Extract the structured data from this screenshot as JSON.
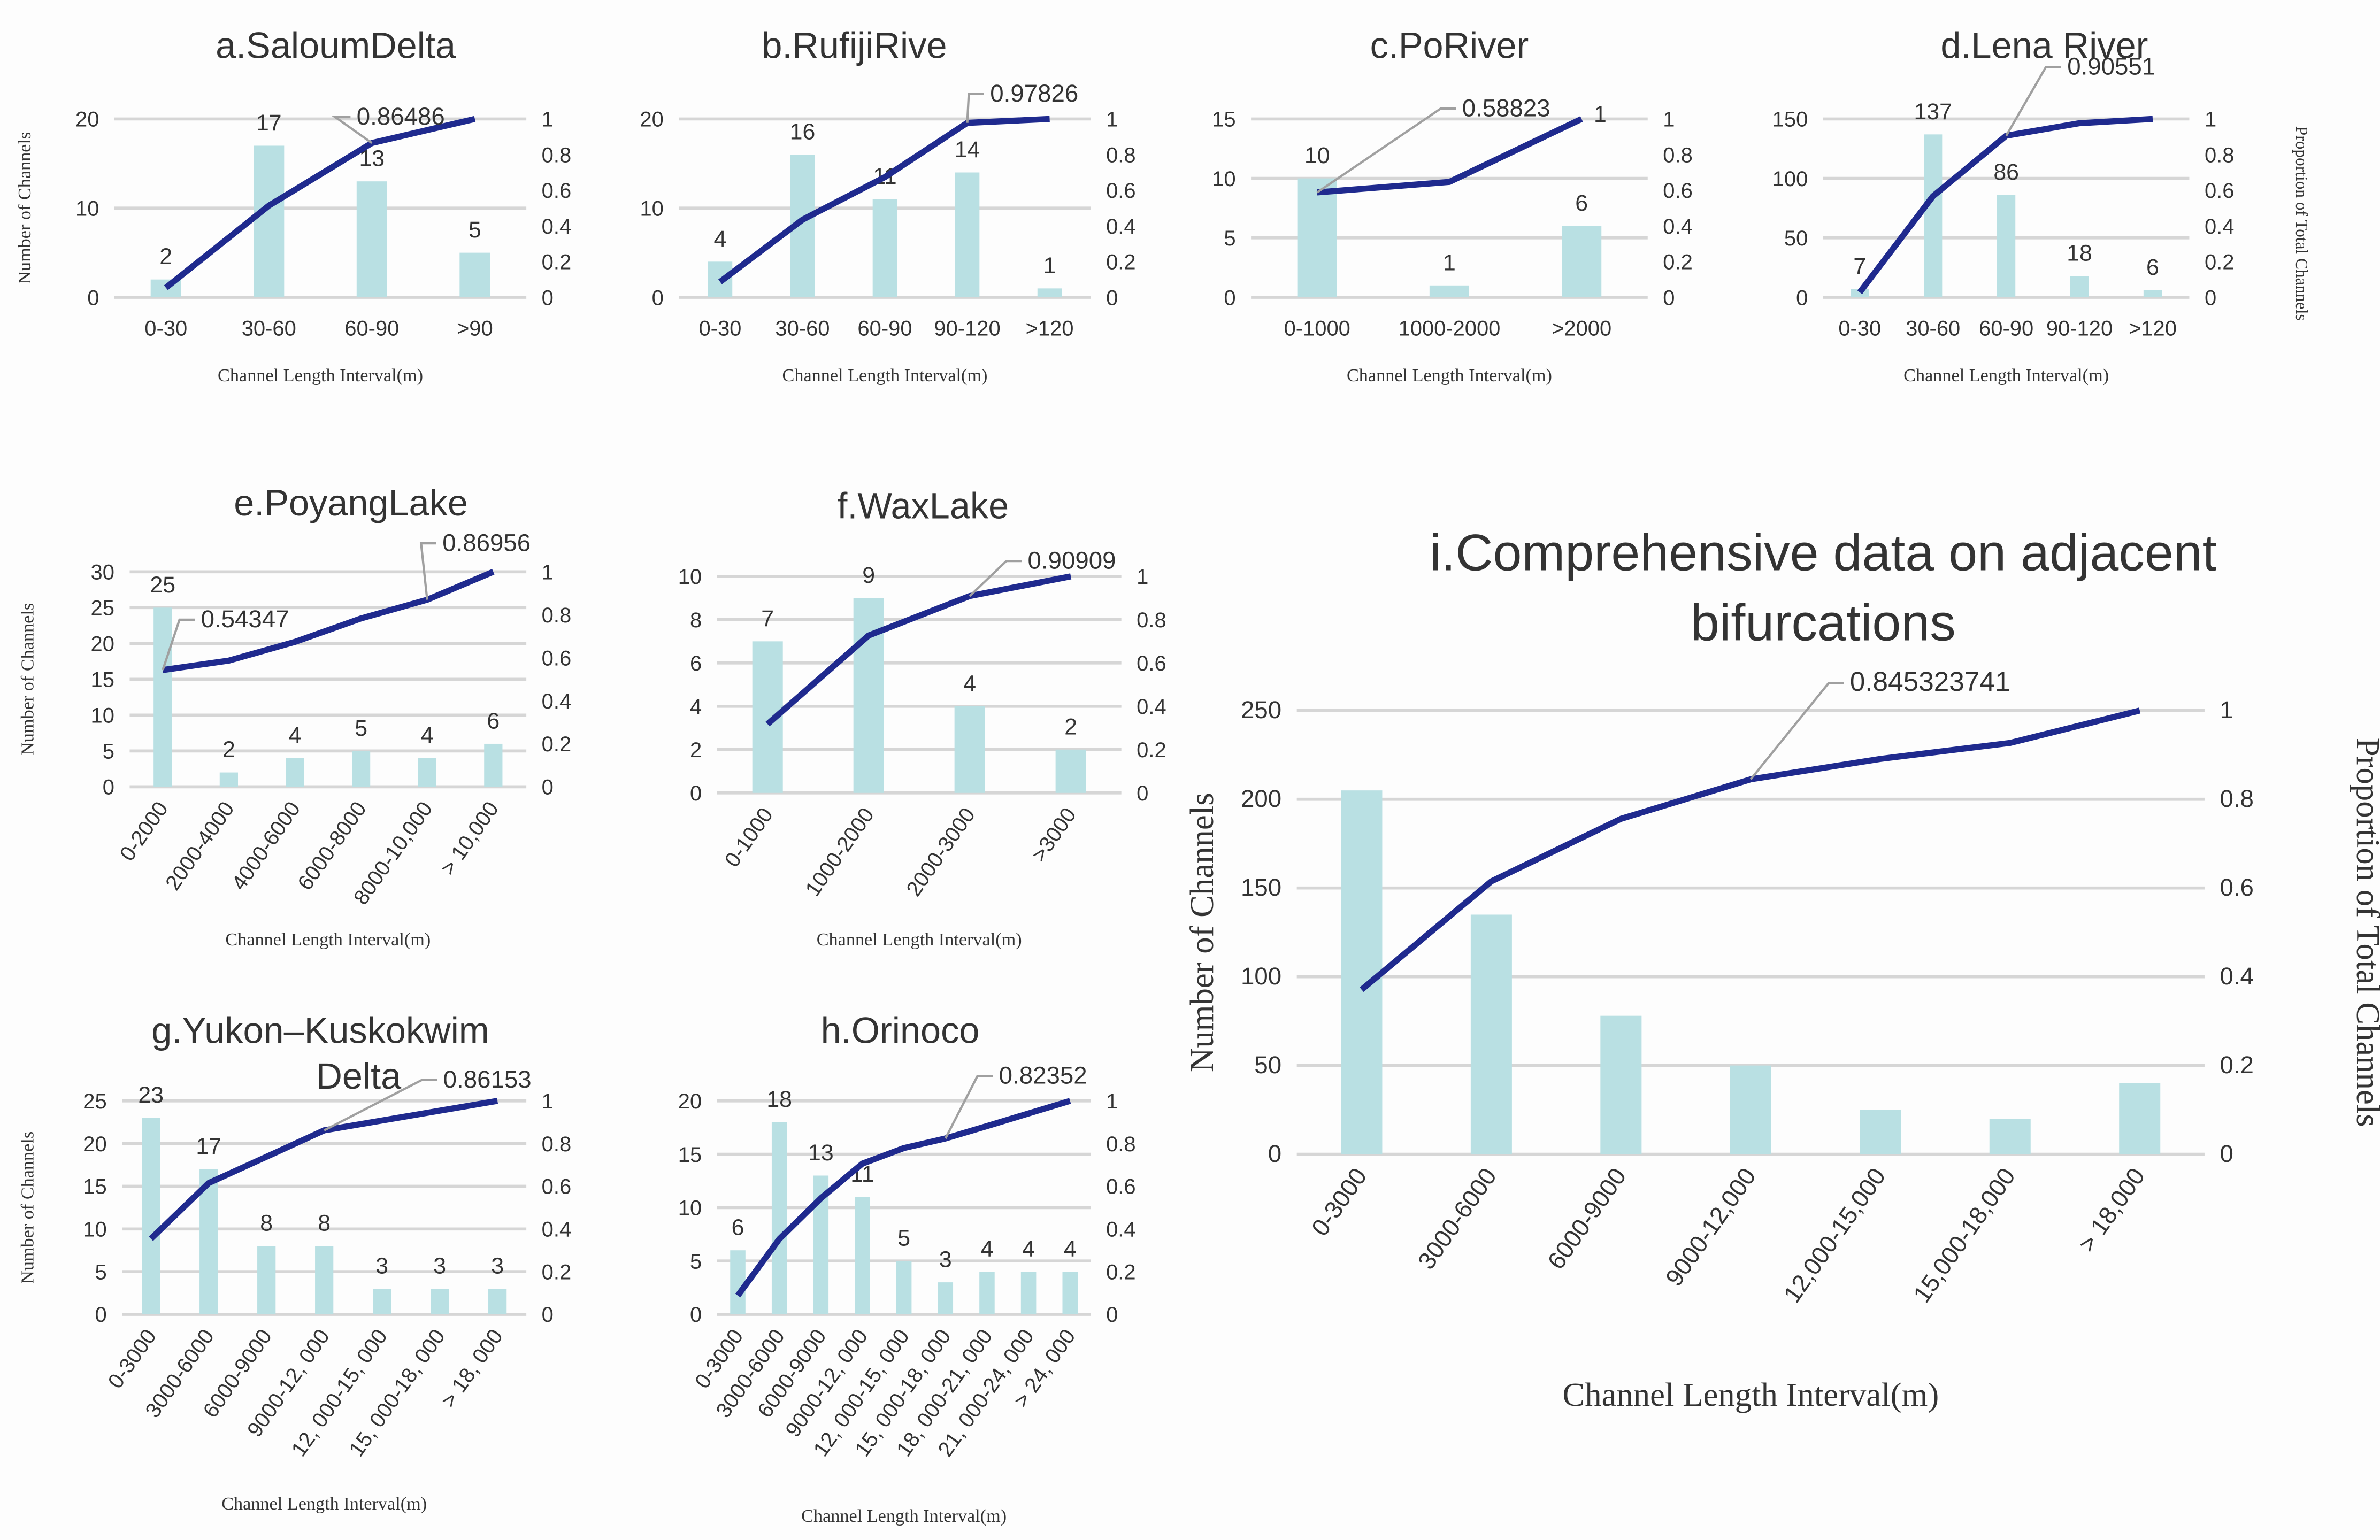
{
  "colors": {
    "bar": "#b9e0e3",
    "line": "#1f2a8e",
    "grid": "#d6d6d6",
    "leader": "#a0a0a0",
    "text": "#333333"
  },
  "chart_data": [
    {
      "id": "a",
      "type": "bar+line",
      "title": "a.SaloumDelta",
      "xlabel": "Channel Length Interval(m)",
      "ylabel": "Number of Channels",
      "y2label": "",
      "categories": [
        "0-30",
        "30-60",
        "60-90",
        ">90"
      ],
      "values": [
        2,
        17,
        13,
        5
      ],
      "proportion": [
        0.054,
        0.514,
        0.865,
        1
      ],
      "ylim": [
        0,
        20
      ],
      "yticks": [
        0,
        10,
        20
      ],
      "y2lim": [
        0,
        1
      ],
      "y2ticks": [
        "0",
        "0.2",
        "0.4",
        "0.6",
        "0.8",
        "1"
      ],
      "annotation": {
        "index": 2,
        "text": "0.86486"
      },
      "rotate_xticks": false
    },
    {
      "id": "b",
      "type": "bar+line",
      "title": "b.RufijiRive",
      "xlabel": "Channel Length Interval(m)",
      "ylabel": "",
      "y2label": "",
      "categories": [
        "0-30",
        "30-60",
        "60-90",
        "90-120",
        ">120"
      ],
      "values": [
        4,
        16,
        11,
        14,
        1
      ],
      "proportion": [
        0.087,
        0.435,
        0.674,
        0.978,
        1
      ],
      "ylim": [
        0,
        20
      ],
      "yticks": [
        0,
        10,
        20
      ],
      "y2lim": [
        0,
        1
      ],
      "y2ticks": [
        "0",
        "0.2",
        "0.4",
        "0.6",
        "0.8",
        "1"
      ],
      "annotation": {
        "index": 3,
        "text": "0.97826"
      },
      "rotate_xticks": false
    },
    {
      "id": "c",
      "type": "bar+line",
      "title": "c.PoRiver",
      "xlabel": "Channel Length Interval(m)",
      "ylabel": "",
      "y2label": "",
      "categories": [
        "0-1000",
        "1000-2000",
        ">2000"
      ],
      "values": [
        10,
        1,
        6
      ],
      "proportion": [
        0.588,
        0.647,
        1
      ],
      "ylim": [
        0,
        15
      ],
      "yticks": [
        0,
        5,
        10,
        15
      ],
      "y2lim": [
        0,
        1
      ],
      "y2ticks": [
        "0",
        "0.2",
        "0.4",
        "0.6",
        "0.8",
        "1"
      ],
      "annotation": {
        "index": 0,
        "text": "0.58823"
      },
      "end_label": "1",
      "rotate_xticks": false
    },
    {
      "id": "d",
      "type": "bar+line",
      "title": "d.Lena River",
      "xlabel": "Channel Length Interval(m)",
      "ylabel": "",
      "y2label": "Proportion of Total Channels",
      "categories": [
        "0-30",
        "30-60",
        "60-90",
        "90-120",
        ">120"
      ],
      "values": [
        7,
        137,
        86,
        18,
        6
      ],
      "proportion": [
        0.028,
        0.567,
        0.906,
        0.976,
        1
      ],
      "ylim": [
        0,
        150
      ],
      "yticks": [
        0,
        50,
        100,
        150
      ],
      "y2lim": [
        0,
        1
      ],
      "y2ticks": [
        "0",
        "0.2",
        "0.4",
        "0.6",
        "0.8",
        "1"
      ],
      "annotation": {
        "index": 2,
        "text": "0.90551"
      },
      "rotate_xticks": false
    },
    {
      "id": "e",
      "type": "bar+line",
      "title": "e.PoyangLake",
      "xlabel": "Channel Length Interval(m)",
      "ylabel": "Number of Channels",
      "y2label": "",
      "categories": [
        "0-2000",
        "2000-4000",
        "4000-6000",
        "6000-8000",
        "8000-10,000",
        "> 10,000"
      ],
      "values": [
        25,
        2,
        4,
        5,
        4,
        6
      ],
      "proportion": [
        0.543,
        0.587,
        0.674,
        0.783,
        0.87,
        1
      ],
      "ylim": [
        0,
        30
      ],
      "yticks": [
        0,
        5,
        10,
        15,
        20,
        25,
        30
      ],
      "y2lim": [
        0,
        1
      ],
      "y2ticks": [
        "0",
        "0.2",
        "0.4",
        "0.6",
        "0.8",
        "1"
      ],
      "annotation": {
        "index": 0,
        "text": "0.54347"
      },
      "annotation2": {
        "index": 4,
        "text": "0.86956"
      },
      "rotate_xticks": true
    },
    {
      "id": "f",
      "type": "bar+line",
      "title": "f.WaxLake",
      "xlabel": "Channel Length Interval(m)",
      "ylabel": "",
      "y2label": "",
      "categories": [
        "0-1000",
        "1000-2000",
        "2000-3000",
        ">3000"
      ],
      "values": [
        7,
        9,
        4,
        2
      ],
      "proportion": [
        0.318,
        0.727,
        0.909,
        1
      ],
      "ylim": [
        0,
        10
      ],
      "yticks": [
        0,
        2,
        4,
        6,
        8,
        10
      ],
      "y2lim": [
        0,
        1
      ],
      "y2ticks": [
        "0",
        "0.2",
        "0.4",
        "0.6",
        "0.8",
        "1"
      ],
      "annotation": {
        "index": 2,
        "text": "0.90909"
      },
      "rotate_xticks": true
    },
    {
      "id": "g",
      "type": "bar+line",
      "title": "g.Yukon–Kuskokwim",
      "title2": "Delta",
      "xlabel": "Channel Length Interval(m)",
      "ylabel": "Number of Channels",
      "y2label": "",
      "categories": [
        "0-3000",
        "3000-6000",
        "6000-9000",
        "9000-12, 000",
        "12, 000-15, 000",
        "15, 000-18, 000",
        "> 18, 000"
      ],
      "values": [
        23,
        17,
        8,
        8,
        3,
        3,
        3
      ],
      "proportion": [
        0.354,
        0.615,
        0.738,
        0.862,
        0.908,
        0.954,
        1
      ],
      "ylim": [
        0,
        25
      ],
      "yticks": [
        0,
        5,
        10,
        15,
        20,
        25
      ],
      "y2lim": [
        0,
        1
      ],
      "y2ticks": [
        "0",
        "0.2",
        "0.4",
        "0.6",
        "0.8",
        "1"
      ],
      "annotation": {
        "index": 3,
        "text": "0.86153"
      },
      "rotate_xticks": true
    },
    {
      "id": "h",
      "type": "bar+line",
      "title": "h.Orinoco",
      "xlabel": "Channel Length Interval(m)",
      "ylabel": "",
      "y2label": "",
      "categories": [
        "0-3000",
        "3000-6000",
        "6000-9000",
        "9000-12, 000",
        "12, 000-15, 000",
        "15, 000-18, 000",
        "18, 000-21, 000",
        "21, 000-24, 000",
        "> 24, 000"
      ],
      "values": [
        6,
        18,
        13,
        11,
        5,
        3,
        4,
        4,
        4
      ],
      "proportion": [
        0.088,
        0.353,
        0.544,
        0.706,
        0.779,
        0.824,
        0.882,
        0.941,
        1
      ],
      "ylim": [
        0,
        20
      ],
      "yticks": [
        0,
        5,
        10,
        15,
        20
      ],
      "y2lim": [
        0,
        1
      ],
      "y2ticks": [
        "0",
        "0.2",
        "0.4",
        "0.6",
        "0.8",
        "1"
      ],
      "annotation": {
        "index": 5,
        "text": "0.82352"
      },
      "rotate_xticks": true
    },
    {
      "id": "i",
      "type": "bar+line",
      "title": "i.Comprehensive data on adjacent",
      "title2": "bifurcations",
      "xlabel": "Channel Length Interval(m)",
      "ylabel": "Number of  Channels",
      "y2label": "Proportion of Total Channels",
      "categories": [
        "0-3000",
        "3000-6000",
        "6000-9000",
        "9000-12,000",
        "12,000-15,000",
        "15,000-18,000",
        "> 18,000"
      ],
      "values": [
        205,
        135,
        78,
        50,
        25,
        20,
        40
      ],
      "proportion": [
        0.371,
        0.615,
        0.756,
        0.845,
        0.891,
        0.927,
        1
      ],
      "ylim": [
        0,
        250
      ],
      "yticks": [
        0,
        50,
        100,
        150,
        200,
        250
      ],
      "y2lim": [
        0,
        1
      ],
      "y2ticks": [
        "0",
        "0.2",
        "0.4",
        "0.6",
        "0.8",
        "1"
      ],
      "annotation": {
        "index": 3,
        "text": "0.845323741"
      },
      "show_value_labels": false,
      "rotate_xticks": true
    }
  ]
}
